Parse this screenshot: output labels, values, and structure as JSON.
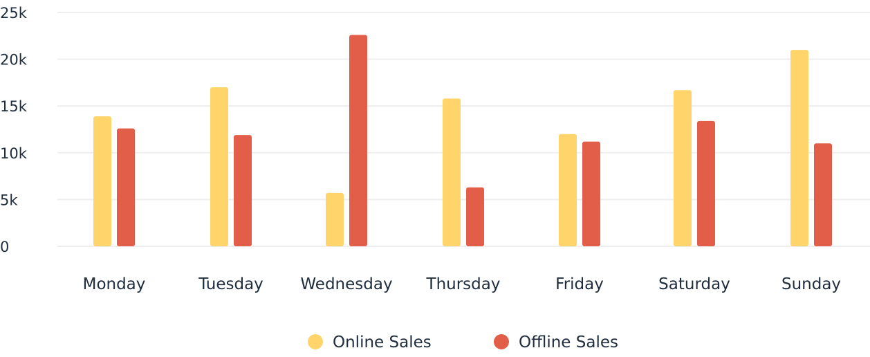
{
  "chart_data": {
    "type": "bar",
    "categories": [
      "Monday",
      "Tuesday",
      "Wednesday",
      "Thursday",
      "Friday",
      "Saturday",
      "Sunday"
    ],
    "series": [
      {
        "name": "Online Sales",
        "values": [
          13900,
          17000,
          5700,
          15800,
          12000,
          16700,
          21000
        ],
        "color": "#FFD56B"
      },
      {
        "name": "Offline Sales",
        "values": [
          12600,
          11900,
          22600,
          6300,
          11200,
          13400,
          11000
        ],
        "color": "#E25E48"
      }
    ],
    "y_ticks": [
      "0",
      "5k",
      "10k",
      "15k",
      "20k",
      "25k"
    ],
    "ylim": [
      0,
      25000
    ],
    "grid": true,
    "legend_position": "bottom-center",
    "gridline_color": "#EEEEEE"
  }
}
